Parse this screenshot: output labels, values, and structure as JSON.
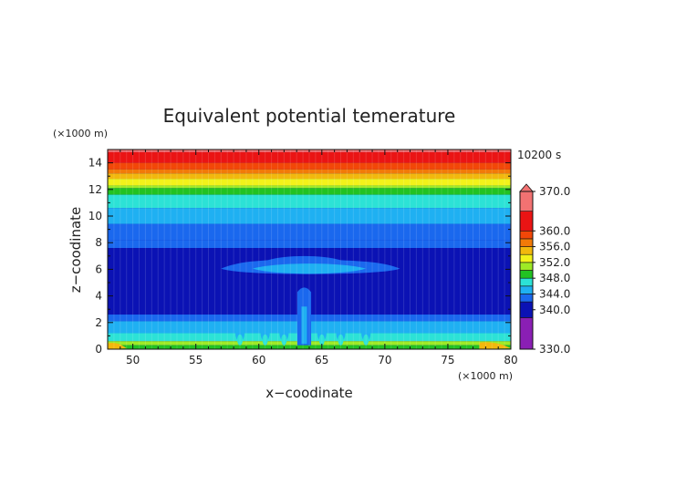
{
  "chart_data": {
    "type": "heatmap",
    "title": "Equivalent potential temerature",
    "xlabel": "x−coodinate",
    "ylabel": "z−coodinate",
    "x_unit": "(×1000 m)",
    "y_unit": "(×1000 m)",
    "time_label": "10200 s",
    "xlim": [
      48,
      80
    ],
    "ylim": [
      0,
      15
    ],
    "x_ticks": [
      50,
      55,
      60,
      65,
      70,
      75,
      80
    ],
    "y_ticks": [
      0,
      2,
      4,
      6,
      8,
      10,
      12,
      14
    ],
    "colorbar": {
      "min": 330,
      "max": 370,
      "tick_values": [
        370,
        360,
        356,
        352,
        348,
        344,
        340,
        330
      ],
      "tick_labels": [
        "370.0",
        "360.0",
        "356.0",
        "352.0",
        "348.0",
        "344.0",
        "340.0",
        "330.0"
      ],
      "levels": [
        {
          "from": 330,
          "to": 338,
          "color": "#8a1fb4"
        },
        {
          "from": 338,
          "to": 342,
          "color": "#0b12b4"
        },
        {
          "from": 342,
          "to": 344,
          "color": "#1a68ee"
        },
        {
          "from": 344,
          "to": 346,
          "color": "#1fb0f2"
        },
        {
          "from": 346,
          "to": 348,
          "color": "#2ce2d6"
        },
        {
          "from": 348,
          "to": 350,
          "color": "#22c222"
        },
        {
          "from": 350,
          "to": 352,
          "color": "#9eea26"
        },
        {
          "from": 352,
          "to": 354,
          "color": "#f2f21a"
        },
        {
          "from": 354,
          "to": 356,
          "color": "#f2b80d"
        },
        {
          "from": 356,
          "to": 358,
          "color": "#f27a08"
        },
        {
          "from": 358,
          "to": 360,
          "color": "#f24708"
        },
        {
          "from": 360,
          "to": 365,
          "color": "#ea1414"
        },
        {
          "from": 365,
          "to": 370,
          "color": "#f27272"
        }
      ]
    },
    "bands": [
      {
        "z0": 14.8,
        "z1": 15.0,
        "theta": 366
      },
      {
        "z0": 14.0,
        "z1": 14.8,
        "theta": 362
      },
      {
        "z0": 13.5,
        "z1": 14.0,
        "theta": 359
      },
      {
        "z0": 13.2,
        "z1": 13.5,
        "theta": 357
      },
      {
        "z0": 12.8,
        "z1": 13.2,
        "theta": 355
      },
      {
        "z0": 12.3,
        "z1": 12.8,
        "theta": 353
      },
      {
        "z0": 12.1,
        "z1": 12.3,
        "theta": 351
      },
      {
        "z0": 11.6,
        "z1": 12.1,
        "theta": 349
      },
      {
        "z0": 10.6,
        "z1": 11.6,
        "theta": 347
      },
      {
        "z0": 9.4,
        "z1": 10.6,
        "theta": 345
      },
      {
        "z0": 8.2,
        "z1": 9.4,
        "theta": 343
      },
      {
        "z0": 7.6,
        "z1": 8.2,
        "theta": 343
      },
      {
        "z0": 2.6,
        "z1": 7.6,
        "theta": 341
      },
      {
        "z0": 2.1,
        "z1": 2.6,
        "theta": 343
      },
      {
        "z0": 1.2,
        "z1": 2.1,
        "theta": 345
      },
      {
        "z0": 0.6,
        "z1": 1.2,
        "theta": 347
      },
      {
        "z0": 0.3,
        "z1": 0.6,
        "theta": 351
      },
      {
        "z0": 0.0,
        "z1": 0.3,
        "theta": 349
      }
    ],
    "anvil_outer": {
      "x_left": 57.0,
      "x_right": 71.2,
      "z_center": 6.05,
      "half_thickness": 0.55,
      "crown_top": 7.1,
      "theta": 343
    },
    "anvil_inner": {
      "x_left": 59.5,
      "x_right": 68.5,
      "z_center": 6.05,
      "half_thickness": 0.32,
      "theta": 345
    },
    "column": {
      "x_center": 63.6,
      "half_width": 0.55,
      "z_bottom": 0.3,
      "z_top": 4.7,
      "theta": 343
    },
    "surface_warm_patches": [
      {
        "x0": 48.0,
        "x1": 49.5,
        "z0": 0.0,
        "z1": 0.45,
        "theta": 355
      },
      {
        "x0": 77.5,
        "x1": 80.0,
        "z0": 0.0,
        "z1": 0.5,
        "theta": 355
      }
    ]
  }
}
